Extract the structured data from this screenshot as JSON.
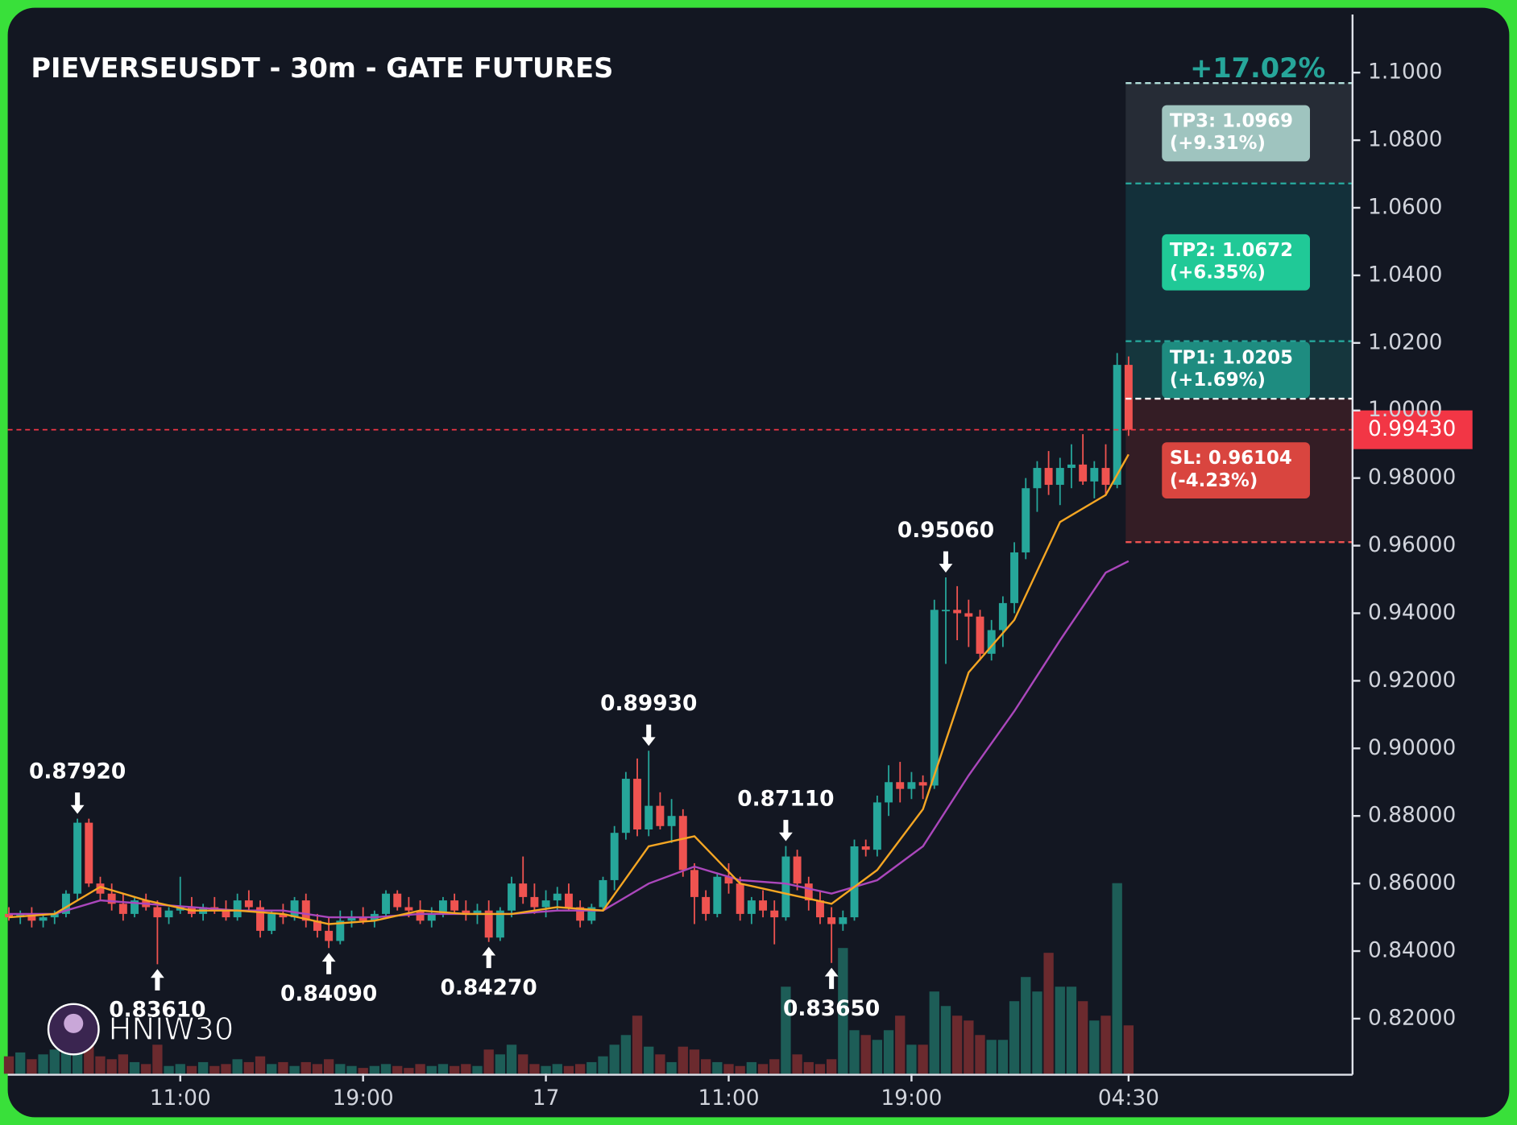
{
  "chart_data": {
    "type": "candlestick",
    "title": "PIEVERSEUSDT - 30m - GATE FUTURES",
    "watermark": "HNIW30",
    "up_color": "#26a69a",
    "down_color": "#ef5350",
    "grid": true,
    "xlim": [
      -0.1,
      117.6
    ],
    "ylim": [
      0.8037,
      1.1172
    ],
    "xticks": [
      {
        "value": 15,
        "label": "11:00"
      },
      {
        "value": 31,
        "label": "19:00"
      },
      {
        "value": 47,
        "label": "17"
      },
      {
        "value": 63,
        "label": "11:00"
      },
      {
        "value": 79,
        "label": "19:00"
      },
      {
        "value": 98,
        "label": "04:30"
      }
    ],
    "yticks": [
      {
        "value": 1.1,
        "label": "1.1000"
      },
      {
        "value": 1.08,
        "label": "1.0800"
      },
      {
        "value": 1.06,
        "label": "1.0600"
      },
      {
        "value": 1.04,
        "label": "1.0400"
      },
      {
        "value": 1.02,
        "label": "1.0200"
      },
      {
        "value": 1.0,
        "label": "1.0000"
      },
      {
        "value": 0.98,
        "label": "0.98000"
      },
      {
        "value": 0.96,
        "label": "0.96000"
      },
      {
        "value": 0.94,
        "label": "0.94000"
      },
      {
        "value": 0.92,
        "label": "0.92000"
      },
      {
        "value": 0.9,
        "label": "0.90000"
      },
      {
        "value": 0.88,
        "label": "0.88000"
      },
      {
        "value": 0.86,
        "label": "0.86000"
      },
      {
        "value": 0.84,
        "label": "0.84000"
      },
      {
        "value": 0.82,
        "label": "0.82000"
      }
    ],
    "ohlc": [
      [
        0.851,
        0.853,
        0.849,
        0.85
      ],
      [
        0.85,
        0.852,
        0.848,
        0.851
      ],
      [
        0.851,
        0.853,
        0.847,
        0.849
      ],
      [
        0.849,
        0.851,
        0.847,
        0.85
      ],
      [
        0.85,
        0.852,
        0.848,
        0.851
      ],
      [
        0.851,
        0.858,
        0.85,
        0.857
      ],
      [
        0.857,
        0.8792,
        0.855,
        0.878
      ],
      [
        0.878,
        0.8792,
        0.859,
        0.86
      ],
      [
        0.86,
        0.862,
        0.855,
        0.857
      ],
      [
        0.857,
        0.86,
        0.852,
        0.854
      ],
      [
        0.854,
        0.857,
        0.849,
        0.851
      ],
      [
        0.851,
        0.856,
        0.85,
        0.855
      ],
      [
        0.855,
        0.857,
        0.852,
        0.853
      ],
      [
        0.853,
        0.855,
        0.8361,
        0.85
      ],
      [
        0.85,
        0.853,
        0.848,
        0.852
      ],
      [
        0.852,
        0.862,
        0.851,
        0.853
      ],
      [
        0.853,
        0.856,
        0.85,
        0.851
      ],
      [
        0.851,
        0.854,
        0.849,
        0.853
      ],
      [
        0.853,
        0.856,
        0.851,
        0.852
      ],
      [
        0.852,
        0.855,
        0.849,
        0.85
      ],
      [
        0.85,
        0.857,
        0.849,
        0.855
      ],
      [
        0.855,
        0.858,
        0.852,
        0.853
      ],
      [
        0.853,
        0.855,
        0.844,
        0.846
      ],
      [
        0.846,
        0.852,
        0.845,
        0.851
      ],
      [
        0.851,
        0.854,
        0.848,
        0.85
      ],
      [
        0.85,
        0.856,
        0.849,
        0.855
      ],
      [
        0.855,
        0.857,
        0.847,
        0.849
      ],
      [
        0.849,
        0.851,
        0.844,
        0.846
      ],
      [
        0.846,
        0.85,
        0.8409,
        0.843
      ],
      [
        0.843,
        0.852,
        0.842,
        0.849
      ],
      [
        0.849,
        0.852,
        0.847,
        0.85
      ],
      [
        0.85,
        0.853,
        0.848,
        0.849
      ],
      [
        0.849,
        0.852,
        0.847,
        0.851
      ],
      [
        0.851,
        0.858,
        0.85,
        0.857
      ],
      [
        0.857,
        0.858,
        0.852,
        0.853
      ],
      [
        0.853,
        0.856,
        0.85,
        0.852
      ],
      [
        0.852,
        0.855,
        0.848,
        0.849
      ],
      [
        0.849,
        0.853,
        0.847,
        0.851
      ],
      [
        0.851,
        0.856,
        0.85,
        0.855
      ],
      [
        0.855,
        0.857,
        0.851,
        0.852
      ],
      [
        0.852,
        0.855,
        0.849,
        0.851
      ],
      [
        0.851,
        0.854,
        0.848,
        0.852
      ],
      [
        0.852,
        0.855,
        0.8427,
        0.844
      ],
      [
        0.844,
        0.853,
        0.843,
        0.852
      ],
      [
        0.852,
        0.862,
        0.85,
        0.86
      ],
      [
        0.86,
        0.868,
        0.854,
        0.856
      ],
      [
        0.856,
        0.86,
        0.851,
        0.853
      ],
      [
        0.853,
        0.858,
        0.85,
        0.855
      ],
      [
        0.855,
        0.859,
        0.852,
        0.857
      ],
      [
        0.857,
        0.86,
        0.852,
        0.853
      ],
      [
        0.853,
        0.855,
        0.847,
        0.849
      ],
      [
        0.849,
        0.854,
        0.848,
        0.853
      ],
      [
        0.853,
        0.862,
        0.852,
        0.861
      ],
      [
        0.861,
        0.877,
        0.858,
        0.875
      ],
      [
        0.875,
        0.893,
        0.873,
        0.891
      ],
      [
        0.891,
        0.897,
        0.874,
        0.876
      ],
      [
        0.876,
        0.8993,
        0.874,
        0.883
      ],
      [
        0.883,
        0.887,
        0.876,
        0.877
      ],
      [
        0.877,
        0.885,
        0.872,
        0.88
      ],
      [
        0.88,
        0.882,
        0.862,
        0.864
      ],
      [
        0.864,
        0.866,
        0.848,
        0.856
      ],
      [
        0.856,
        0.858,
        0.849,
        0.851
      ],
      [
        0.851,
        0.863,
        0.85,
        0.862
      ],
      [
        0.862,
        0.866,
        0.857,
        0.86
      ],
      [
        0.86,
        0.862,
        0.849,
        0.851
      ],
      [
        0.851,
        0.856,
        0.848,
        0.855
      ],
      [
        0.855,
        0.858,
        0.85,
        0.852
      ],
      [
        0.852,
        0.855,
        0.842,
        0.85
      ],
      [
        0.85,
        0.8711,
        0.849,
        0.868
      ],
      [
        0.868,
        0.87,
        0.858,
        0.86
      ],
      [
        0.86,
        0.862,
        0.852,
        0.855
      ],
      [
        0.855,
        0.858,
        0.848,
        0.85
      ],
      [
        0.85,
        0.853,
        0.8365,
        0.848
      ],
      [
        0.848,
        0.852,
        0.846,
        0.85
      ],
      [
        0.85,
        0.873,
        0.849,
        0.871
      ],
      [
        0.871,
        0.873,
        0.868,
        0.87
      ],
      [
        0.87,
        0.886,
        0.868,
        0.884
      ],
      [
        0.884,
        0.895,
        0.88,
        0.89
      ],
      [
        0.89,
        0.896,
        0.884,
        0.888
      ],
      [
        0.888,
        0.893,
        0.885,
        0.89
      ],
      [
        0.89,
        0.892,
        0.885,
        0.889
      ],
      [
        0.889,
        0.944,
        0.888,
        0.941
      ],
      [
        0.941,
        0.9506,
        0.925,
        0.941
      ],
      [
        0.941,
        0.948,
        0.932,
        0.94
      ],
      [
        0.94,
        0.944,
        0.93,
        0.939
      ],
      [
        0.939,
        0.941,
        0.926,
        0.928
      ],
      [
        0.928,
        0.938,
        0.926,
        0.935
      ],
      [
        0.935,
        0.945,
        0.93,
        0.943
      ],
      [
        0.943,
        0.961,
        0.94,
        0.958
      ],
      [
        0.958,
        0.98,
        0.956,
        0.977
      ],
      [
        0.977,
        0.985,
        0.97,
        0.983
      ],
      [
        0.983,
        0.988,
        0.975,
        0.978
      ],
      [
        0.978,
        0.986,
        0.972,
        0.983
      ],
      [
        0.983,
        0.99,
        0.977,
        0.984
      ],
      [
        0.984,
        0.993,
        0.978,
        0.979
      ],
      [
        0.979,
        0.985,
        0.974,
        0.983
      ],
      [
        0.983,
        0.99,
        0.975,
        0.978
      ],
      [
        0.978,
        1.017,
        0.977,
        1.0135
      ],
      [
        1.0135,
        1.016,
        0.9925,
        0.9943
      ]
    ],
    "volume_lim": [
      0,
      250
    ],
    "volume": [
      18,
      22,
      15,
      20,
      25,
      30,
      45,
      30,
      18,
      15,
      20,
      12,
      10,
      30,
      8,
      10,
      8,
      12,
      8,
      10,
      15,
      12,
      18,
      10,
      12,
      8,
      12,
      10,
      15,
      10,
      8,
      6,
      8,
      10,
      8,
      6,
      10,
      8,
      10,
      8,
      10,
      8,
      25,
      20,
      30,
      20,
      10,
      8,
      10,
      8,
      10,
      12,
      18,
      30,
      40,
      60,
      28,
      20,
      12,
      28,
      25,
      15,
      12,
      10,
      8,
      12,
      10,
      15,
      90,
      20,
      12,
      10,
      15,
      130,
      45,
      40,
      35,
      45,
      60,
      30,
      30,
      85,
      70,
      60,
      55,
      40,
      35,
      35,
      75,
      100,
      85,
      125,
      90,
      90,
      75,
      55,
      60,
      197,
      50
    ],
    "ema_fast": {
      "color": "#f5a623",
      "x": [
        0,
        4,
        8,
        12,
        16,
        20,
        24,
        28,
        32,
        36,
        40,
        44,
        48,
        52,
        56,
        60,
        64,
        68,
        72,
        76,
        80,
        84,
        88,
        92,
        96,
        98
      ],
      "values": [
        0.85,
        0.851,
        0.859,
        0.855,
        0.852,
        0.852,
        0.851,
        0.848,
        0.849,
        0.852,
        0.851,
        0.851,
        0.853,
        0.852,
        0.871,
        0.874,
        0.86,
        0.857,
        0.854,
        0.864,
        0.882,
        0.9225,
        0.938,
        0.967,
        0.975,
        0.987
      ]
    },
    "ema_slow": {
      "color": "#ab47bc",
      "x": [
        0,
        4,
        8,
        12,
        16,
        20,
        24,
        28,
        32,
        36,
        40,
        44,
        48,
        52,
        56,
        60,
        64,
        68,
        72,
        76,
        80,
        84,
        88,
        92,
        96,
        98
      ],
      "values": [
        0.851,
        0.851,
        0.855,
        0.854,
        0.853,
        0.852,
        0.852,
        0.85,
        0.85,
        0.851,
        0.851,
        0.851,
        0.852,
        0.852,
        0.86,
        0.865,
        0.861,
        0.86,
        0.857,
        0.861,
        0.871,
        0.892,
        0.911,
        0.932,
        0.952,
        0.9554
      ]
    },
    "annotations": [
      {
        "value": 0.8792,
        "label": "0.87920",
        "index": 6,
        "dir": "down"
      },
      {
        "value": 0.8361,
        "label": "0.83610",
        "index": 13,
        "dir": "up"
      },
      {
        "value": 0.8409,
        "label": "0.84090",
        "index": 28,
        "dir": "up"
      },
      {
        "value": 0.8427,
        "label": "0.84270",
        "index": 42,
        "dir": "up"
      },
      {
        "value": 0.8993,
        "label": "0.89930",
        "index": 56,
        "dir": "down"
      },
      {
        "value": 0.8711,
        "label": "0.87110",
        "index": 68,
        "dir": "down"
      },
      {
        "value": 0.8365,
        "label": "0.83650",
        "index": 72,
        "dir": "up"
      },
      {
        "value": 0.9506,
        "label": "0.95060",
        "index": 82,
        "dir": "down"
      }
    ],
    "current_price": {
      "value": 0.9943,
      "label": "0.99430",
      "color": "#f23645"
    },
    "trade": {
      "total_gain": "+17.02%",
      "entry": 1.0035,
      "start_index": 98,
      "targets": [
        {
          "value": 1.0969,
          "label": "TP3: 1.0969",
          "change": "(+9.31%)",
          "color": "#9fc4bf",
          "zone": "#262c36"
        },
        {
          "value": 1.0672,
          "label": "TP2: 1.0672",
          "change": "(+6.35%)",
          "color": "#20c997",
          "zone": "#13303a"
        },
        {
          "value": 1.0205,
          "label": "TP1: 1.0205",
          "change": "(+1.69%)",
          "color": "#1e8c80",
          "zone": "#15363d"
        }
      ],
      "stop": {
        "value": 0.96104,
        "label": "SL: 0.96104",
        "change": "(-4.23%)",
        "color": "#d9453f",
        "zone": "#341d25"
      }
    }
  }
}
